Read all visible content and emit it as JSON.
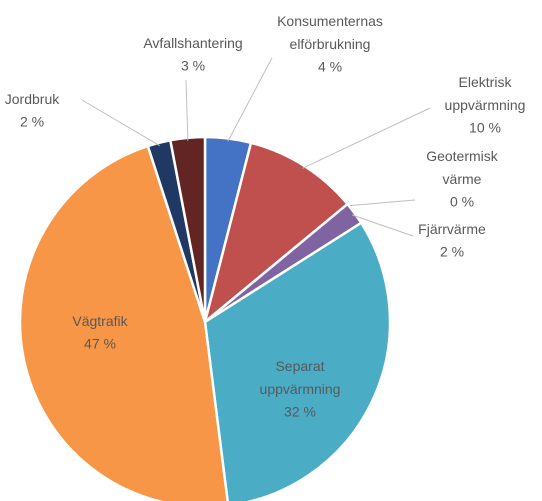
{
  "chart_data": {
    "type": "pie",
    "categories": [
      "Konsumenternas elförbrukning",
      "Elektrisk uppvärmning",
      "Geotermisk värme",
      "Fjärrvärme",
      "Separat uppvärmning",
      "Vägtrafik",
      "Jordbruk",
      "Avfallshantering"
    ],
    "values": [
      4,
      10,
      0,
      2,
      32,
      47,
      2,
      3
    ],
    "value_labels": [
      "4 %",
      "10 %",
      "0 %",
      "2 %",
      "32 %",
      "47 %",
      "2 %",
      "3 %"
    ],
    "colors": [
      "#4472c4",
      "#c0504d",
      "#9bbb59",
      "#8064a2",
      "#4bacc6",
      "#f79646",
      "#1f3864",
      "#632523"
    ]
  }
}
